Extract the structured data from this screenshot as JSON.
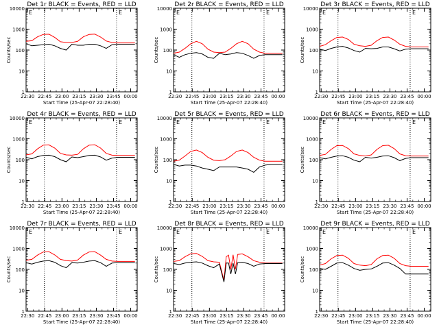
{
  "chart_data": [
    {
      "type": "line",
      "title": "Det 1r BLACK = Events, RED = LLD",
      "ylabel": "Counts/sec",
      "xlabel": "Start Time (25-Apr-07 22:28:40)",
      "x_tick_labels": [
        "22:30",
        "22:45",
        "23:00",
        "23:15",
        "23:30",
        "23:45",
        "00:00"
      ],
      "y_tick_labels": [
        "1",
        "10",
        "100",
        "1000",
        "10000"
      ],
      "ylim": [
        1,
        10000
      ],
      "y_scale": "log",
      "vlines_min": [
        16,
        79
      ],
      "marker": "E",
      "series": [
        {
          "color": "#ff0000",
          "x_min": [
            0,
            5,
            10,
            15,
            20,
            25,
            30,
            35,
            40,
            45,
            50,
            55,
            60,
            65,
            70,
            75,
            80,
            85,
            90,
            95
          ],
          "values": [
            260,
            280,
            430,
            560,
            570,
            400,
            250,
            230,
            230,
            260,
            430,
            560,
            580,
            420,
            270,
            230,
            220,
            220,
            220,
            220
          ]
        },
        {
          "color": "#000000",
          "x_min": [
            0,
            5,
            10,
            15,
            20,
            25,
            30,
            35,
            40,
            45,
            50,
            55,
            60,
            65,
            70,
            75,
            80,
            85,
            90,
            95
          ],
          "values": [
            200,
            160,
            170,
            180,
            190,
            160,
            120,
            100,
            190,
            170,
            170,
            190,
            190,
            160,
            120,
            180,
            190,
            190,
            190,
            190
          ]
        }
      ]
    },
    {
      "type": "line",
      "title": "Det 2r BLACK = Events, RED = LLD",
      "ylabel": "Counts/sec",
      "xlabel": "Start Time (25-Apr-07 22:28:40)",
      "x_tick_labels": [
        "22:30",
        "22:45",
        "23:00",
        "23:15",
        "23:30",
        "23:45",
        "00:00"
      ],
      "y_tick_labels": [
        "1",
        "10",
        "100",
        "1000",
        "10000"
      ],
      "ylim": [
        1,
        10000
      ],
      "y_scale": "log",
      "vlines_min": [
        16,
        79
      ],
      "marker": "E",
      "series": [
        {
          "color": "#ff0000",
          "x_min": [
            0,
            5,
            10,
            15,
            20,
            25,
            30,
            35,
            40,
            45,
            50,
            55,
            60,
            65,
            70,
            75,
            80,
            85,
            90,
            95
          ],
          "values": [
            70,
            80,
            120,
            200,
            260,
            200,
            110,
            80,
            75,
            80,
            120,
            200,
            260,
            200,
            110,
            80,
            70,
            70,
            70,
            70
          ]
        },
        {
          "color": "#000000",
          "x_min": [
            0,
            5,
            10,
            15,
            20,
            25,
            30,
            35,
            40,
            45,
            50,
            55,
            60,
            65,
            70,
            75,
            80,
            85,
            90,
            95
          ],
          "values": [
            60,
            45,
            60,
            70,
            75,
            65,
            45,
            40,
            70,
            60,
            65,
            75,
            70,
            55,
            40,
            55,
            60,
            60,
            60,
            60
          ]
        }
      ]
    },
    {
      "type": "line",
      "title": "Det 3r BLACK = Events, RED = LLD",
      "ylabel": "Counts/sec",
      "xlabel": "Start Time (25-Apr-07 22:28:40)",
      "x_tick_labels": [
        "22:30",
        "22:45",
        "23:00",
        "23:15",
        "23:30",
        "23:45",
        "00:00"
      ],
      "y_tick_labels": [
        "1",
        "10",
        "100",
        "1000",
        "10000"
      ],
      "ylim": [
        1,
        10000
      ],
      "y_scale": "log",
      "vlines_min": [
        16,
        79
      ],
      "marker": "E",
      "series": [
        {
          "color": "#ff0000",
          "x_min": [
            0,
            5,
            10,
            15,
            20,
            25,
            30,
            35,
            40,
            45,
            50,
            55,
            60,
            65,
            70,
            75,
            80,
            85,
            90,
            95
          ],
          "values": [
            150,
            180,
            280,
            400,
            420,
            320,
            190,
            160,
            150,
            170,
            280,
            400,
            420,
            300,
            190,
            150,
            140,
            140,
            140,
            140
          ]
        },
        {
          "color": "#000000",
          "x_min": [
            0,
            5,
            10,
            15,
            20,
            25,
            30,
            35,
            40,
            45,
            50,
            55,
            60,
            65,
            70,
            75,
            80,
            85,
            90,
            95
          ],
          "values": [
            110,
            95,
            120,
            140,
            150,
            125,
            95,
            80,
            120,
            115,
            120,
            140,
            140,
            115,
            90,
            110,
            115,
            115,
            115,
            115
          ]
        }
      ]
    },
    {
      "type": "line",
      "title": "Det 4r BLACK = Events, RED = LLD",
      "ylabel": "Counts/sec",
      "xlabel": "Start Time (25-Apr-07 22:28:40)",
      "x_tick_labels": [
        "22:30",
        "22:45",
        "23:00",
        "23:15",
        "23:30",
        "23:45",
        "00:00"
      ],
      "y_tick_labels": [
        "1",
        "10",
        "100",
        "1000",
        "10000"
      ],
      "ylim": [
        1,
        10000
      ],
      "y_scale": "log",
      "vlines_min": [
        16,
        79
      ],
      "marker": "E",
      "series": [
        {
          "color": "#ff0000",
          "x_min": [
            0,
            5,
            10,
            15,
            20,
            25,
            30,
            35,
            40,
            45,
            50,
            55,
            60,
            65,
            70,
            75,
            80,
            85,
            90,
            95
          ],
          "values": [
            170,
            190,
            330,
            500,
            510,
            360,
            200,
            170,
            165,
            180,
            330,
            500,
            520,
            360,
            200,
            165,
            160,
            160,
            160,
            160
          ]
        },
        {
          "color": "#000000",
          "x_min": [
            0,
            5,
            10,
            15,
            20,
            25,
            30,
            35,
            40,
            45,
            50,
            55,
            60,
            65,
            70,
            75,
            80,
            85,
            90,
            95
          ],
          "values": [
            130,
            110,
            140,
            160,
            165,
            140,
            100,
            80,
            135,
            125,
            140,
            160,
            165,
            135,
            95,
            120,
            130,
            130,
            130,
            130
          ]
        }
      ]
    },
    {
      "type": "line",
      "title": "Det 5r BLACK = Events, RED = LLD",
      "ylabel": "Counts/sec",
      "xlabel": "Start Time (25-Apr-07 22:28:40)",
      "x_tick_labels": [
        "22:30",
        "22:45",
        "23:00",
        "23:15",
        "23:30",
        "23:45",
        "00:00"
      ],
      "y_tick_labels": [
        "1",
        "10",
        "100",
        "1000",
        "10000"
      ],
      "ylim": [
        1,
        10000
      ],
      "y_scale": "log",
      "vlines_min": [
        16,
        79
      ],
      "marker": "E",
      "series": [
        {
          "color": "#ff0000",
          "x_min": [
            0,
            5,
            10,
            15,
            20,
            25,
            30,
            35,
            40,
            45,
            50,
            55,
            60,
            65,
            70,
            75,
            80,
            85,
            90,
            95
          ],
          "values": [
            85,
            95,
            150,
            250,
            290,
            220,
            130,
            95,
            90,
            100,
            150,
            250,
            290,
            220,
            130,
            95,
            85,
            85,
            85,
            85
          ]
        },
        {
          "color": "#000000",
          "x_min": [
            0,
            5,
            10,
            15,
            20,
            25,
            30,
            35,
            40,
            45,
            50,
            55,
            60,
            65,
            70,
            75,
            80,
            85,
            90,
            95
          ],
          "values": [
            60,
            50,
            55,
            55,
            50,
            40,
            35,
            30,
            45,
            45,
            45,
            45,
            40,
            35,
            25,
            45,
            55,
            60,
            60,
            60
          ]
        }
      ]
    },
    {
      "type": "line",
      "title": "Det 6r BLACK = Events, RED = LLD",
      "ylabel": "Counts/sec",
      "xlabel": "Start Time (25-Apr-07 22:28:40)",
      "x_tick_labels": [
        "22:30",
        "22:45",
        "23:00",
        "23:15",
        "23:30",
        "23:45",
        "00:00"
      ],
      "y_tick_labels": [
        "1",
        "10",
        "100",
        "1000",
        "10000"
      ],
      "ylim": [
        1,
        10000
      ],
      "y_scale": "log",
      "vlines_min": [
        16,
        79
      ],
      "marker": "E",
      "series": [
        {
          "color": "#ff0000",
          "x_min": [
            0,
            5,
            10,
            15,
            20,
            25,
            30,
            35,
            40,
            45,
            50,
            55,
            60,
            65,
            70,
            75,
            80,
            85,
            90,
            95
          ],
          "values": [
            160,
            180,
            310,
            470,
            480,
            340,
            190,
            160,
            150,
            170,
            310,
            470,
            490,
            340,
            190,
            155,
            150,
            150,
            150,
            150
          ]
        },
        {
          "color": "#000000",
          "x_min": [
            0,
            5,
            10,
            15,
            20,
            25,
            30,
            35,
            40,
            45,
            50,
            55,
            60,
            65,
            70,
            75,
            80,
            85,
            90,
            95
          ],
          "values": [
            125,
            110,
            130,
            150,
            155,
            130,
            95,
            80,
            130,
            120,
            130,
            150,
            155,
            125,
            90,
            115,
            125,
            125,
            125,
            125
          ]
        }
      ]
    },
    {
      "type": "line",
      "title": "Det 7r BLACK = Events, RED = LLD",
      "ylabel": "Counts/sec",
      "xlabel": "Start Time (25-Apr-07 22:28:40)",
      "x_tick_labels": [
        "22:30",
        "22:45",
        "23:00",
        "23:15",
        "23:30",
        "23:45",
        "00:00"
      ],
      "y_tick_labels": [
        "1",
        "10",
        "100",
        "1000",
        "10000"
      ],
      "ylim": [
        1,
        10000
      ],
      "y_scale": "log",
      "vlines_min": [
        16,
        79
      ],
      "marker": "E",
      "series": [
        {
          "color": "#ff0000",
          "x_min": [
            0,
            5,
            10,
            15,
            20,
            25,
            30,
            35,
            40,
            45,
            50,
            55,
            60,
            65,
            70,
            75,
            80,
            85,
            90,
            95
          ],
          "values": [
            270,
            300,
            480,
            680,
            700,
            490,
            300,
            260,
            250,
            280,
            480,
            680,
            700,
            480,
            300,
            250,
            240,
            240,
            240,
            240
          ]
        },
        {
          "color": "#000000",
          "x_min": [
            0,
            5,
            10,
            15,
            20,
            25,
            30,
            35,
            40,
            45,
            50,
            55,
            60,
            65,
            70,
            75,
            80,
            85,
            90,
            95
          ],
          "values": [
            210,
            180,
            220,
            250,
            260,
            220,
            150,
            120,
            210,
            200,
            220,
            250,
            260,
            210,
            140,
            200,
            210,
            210,
            210,
            210
          ]
        }
      ]
    },
    {
      "type": "line",
      "title": "Det 8r BLACK = Events, RED = LLD",
      "ylabel": "Counts/sec",
      "xlabel": "Start Time (25-Apr-07 22:28:40)",
      "x_tick_labels": [
        "22:30",
        "22:45",
        "23:00",
        "23:15",
        "23:30",
        "23:45",
        "00:00"
      ],
      "y_tick_labels": [
        "1",
        "10",
        "100",
        "1000",
        "10000"
      ],
      "ylim": [
        1,
        10000
      ],
      "y_scale": "log",
      "vlines_min": [
        16,
        79
      ],
      "marker": "E",
      "series": [
        {
          "color": "#ff0000",
          "x_min": [
            0,
            5,
            10,
            15,
            20,
            25,
            30,
            35,
            40,
            44,
            46,
            48,
            50,
            52,
            54,
            56,
            60,
            65,
            70,
            75,
            80,
            85,
            90,
            95
          ],
          "values": [
            240,
            260,
            400,
            560,
            580,
            420,
            260,
            230,
            220,
            30,
            400,
            480,
            100,
            500,
            100,
            520,
            550,
            400,
            260,
            220,
            200,
            200,
            200,
            200
          ]
        },
        {
          "color": "#000000",
          "x_min": [
            0,
            5,
            10,
            15,
            20,
            25,
            30,
            35,
            40,
            44,
            46,
            48,
            50,
            52,
            54,
            56,
            60,
            65,
            70,
            75,
            80,
            85,
            90,
            95
          ],
          "values": [
            190,
            170,
            200,
            220,
            230,
            200,
            150,
            120,
            180,
            25,
            200,
            200,
            60,
            200,
            60,
            210,
            220,
            190,
            140,
            180,
            190,
            190,
            190,
            190
          ]
        }
      ]
    },
    {
      "type": "line",
      "title": "Det 9r BLACK = Events, RED = LLD",
      "ylabel": "Counts/sec",
      "xlabel": "Start Time (25-Apr-07 22:28:40)",
      "x_tick_labels": [
        "22:30",
        "22:45",
        "23:00",
        "23:15",
        "23:30",
        "23:45",
        "00:00"
      ],
      "y_tick_labels": [
        "1",
        "10",
        "100",
        "1000",
        "10000"
      ],
      "ylim": [
        1,
        10000
      ],
      "y_scale": "log",
      "vlines_min": [
        16,
        79
      ],
      "marker": "E",
      "series": [
        {
          "color": "#ff0000",
          "x_min": [
            0,
            5,
            10,
            15,
            20,
            25,
            30,
            35,
            40,
            45,
            50,
            55,
            60,
            65,
            70,
            75,
            80,
            85,
            90,
            95
          ],
          "values": [
            160,
            190,
            320,
            460,
            480,
            340,
            190,
            160,
            150,
            170,
            320,
            460,
            480,
            340,
            190,
            150,
            140,
            140,
            140,
            140
          ]
        },
        {
          "color": "#000000",
          "x_min": [
            0,
            5,
            10,
            15,
            20,
            25,
            30,
            35,
            40,
            45,
            50,
            55,
            60,
            65,
            70,
            75,
            80,
            85,
            90,
            95
          ],
          "values": [
            110,
            100,
            140,
            200,
            210,
            160,
            110,
            90,
            100,
            105,
            140,
            200,
            210,
            160,
            110,
            60,
            60,
            60,
            60,
            60
          ]
        }
      ]
    }
  ]
}
